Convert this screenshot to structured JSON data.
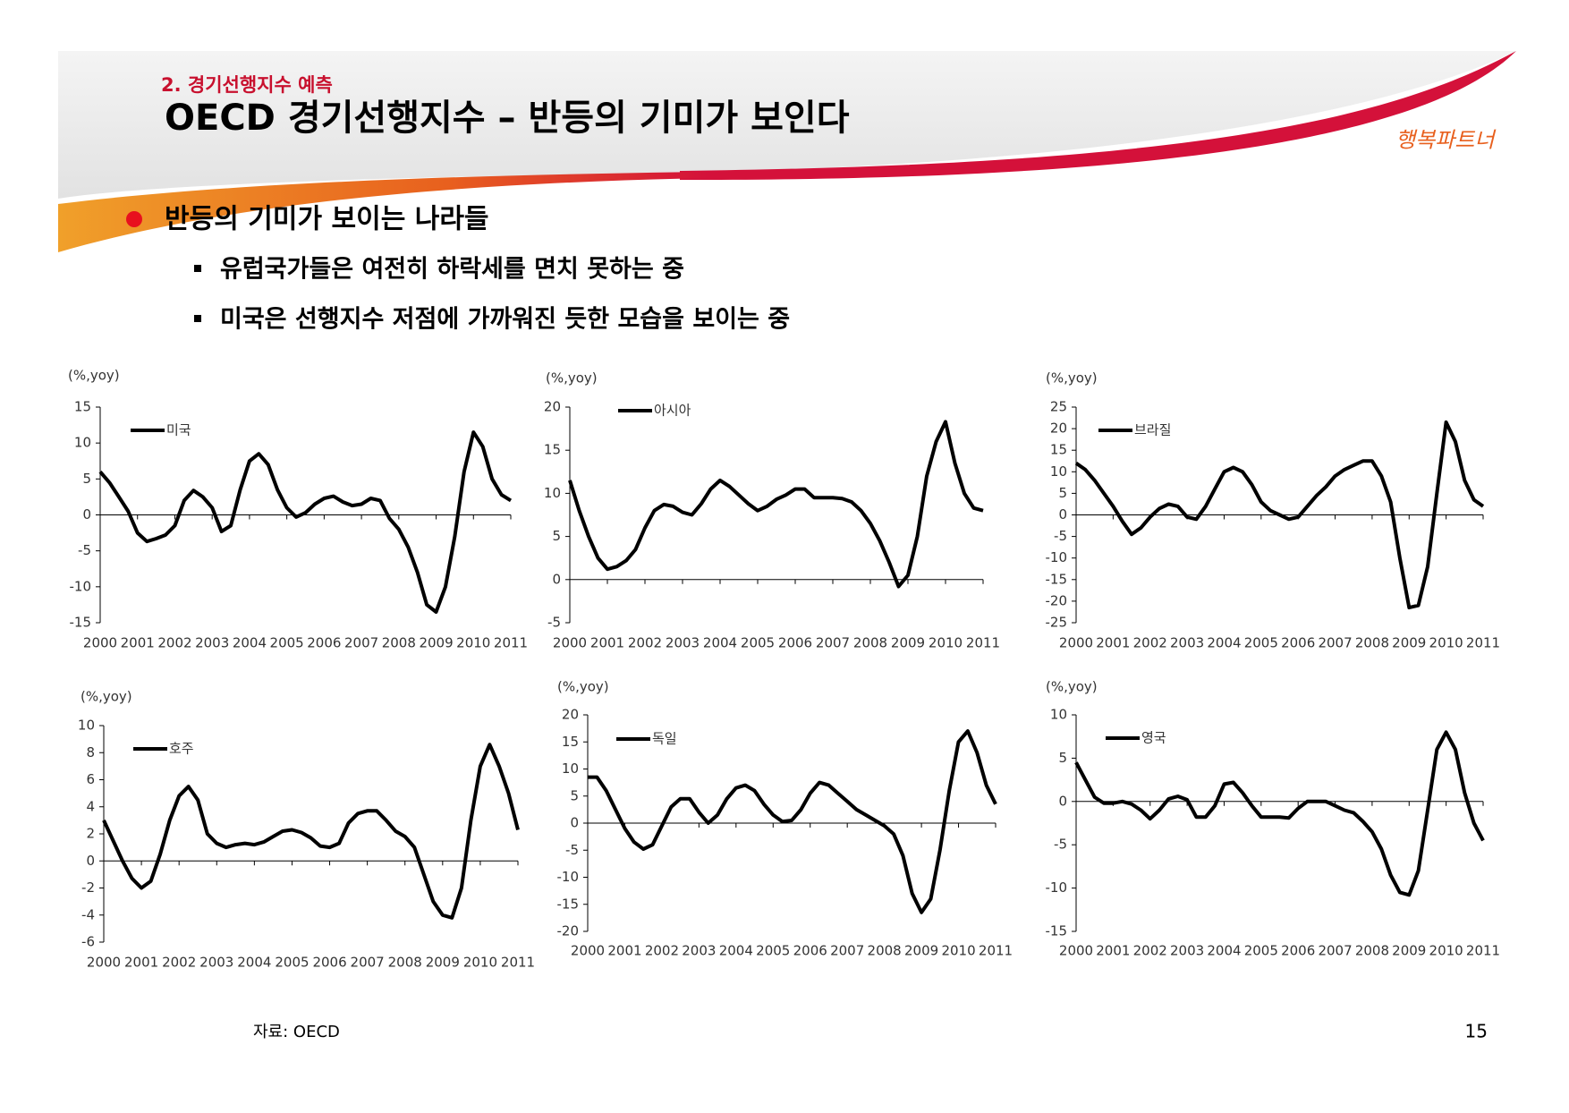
{
  "header": {
    "section": "2. 경기선행지수 예측",
    "title": "OECD 경기선행지수 – 반등의 기미가 보인다",
    "logo": "행복파트너"
  },
  "bullets": {
    "main": "반등의 기미가 보이는 나라들",
    "items": [
      "유럽국가들은 여전히 하락세를 면치 못하는 중",
      "미국은 선행지수 저점에 가까워진 듯한 모습을 보이는 중"
    ]
  },
  "chart_data": [
    {
      "type": "line",
      "y_label": "(%,yoy)",
      "xlim": [
        2000,
        2011
      ],
      "xticks": [
        2000,
        2001,
        2002,
        2003,
        2004,
        2005,
        2006,
        2007,
        2008,
        2009,
        2010,
        2011
      ],
      "ylim": [
        -15,
        15
      ],
      "yticks": [
        -15,
        -10,
        -5,
        0,
        5,
        10,
        15
      ],
      "x": [
        2000,
        2000.25,
        2000.5,
        2000.75,
        2001,
        2001.25,
        2001.5,
        2001.75,
        2002,
        2002.25,
        2002.5,
        2002.75,
        2003,
        2003.25,
        2003.5,
        2003.75,
        2004,
        2004.25,
        2004.5,
        2004.75,
        2005,
        2005.25,
        2005.5,
        2005.75,
        2006,
        2006.25,
        2006.5,
        2006.75,
        2007,
        2007.25,
        2007.5,
        2007.75,
        2008,
        2008.25,
        2008.5,
        2008.75,
        2009,
        2009.25,
        2009.5,
        2009.75,
        2010,
        2010.25,
        2010.5,
        2010.75,
        2011
      ],
      "series": [
        {
          "name": "미국",
          "color": "#000000",
          "values": [
            6,
            4.5,
            2.5,
            0.5,
            -2.5,
            -3.7,
            -3.3,
            -2.8,
            -1.5,
            2,
            3.4,
            2.5,
            1,
            -2.3,
            -1.5,
            3.5,
            7.5,
            8.5,
            7,
            3.5,
            1,
            -0.3,
            0.3,
            1.5,
            2.3,
            2.6,
            1.8,
            1.3,
            1.5,
            2.3,
            2,
            -0.5,
            -2,
            -4.5,
            -8,
            -12.5,
            -13.5,
            -10,
            -3,
            6,
            11.5,
            9.5,
            5,
            2.8,
            2
          ]
        }
      ]
    },
    {
      "type": "line",
      "y_label": "(%,yoy)",
      "xlim": [
        2000,
        2011
      ],
      "xticks": [
        2000,
        2001,
        2002,
        2003,
        2004,
        2005,
        2006,
        2007,
        2008,
        2009,
        2010,
        2011
      ],
      "ylim": [
        -5,
        20
      ],
      "yticks": [
        -5,
        0,
        5,
        10,
        15,
        20
      ],
      "x": [
        2000,
        2000.25,
        2000.5,
        2000.75,
        2001,
        2001.25,
        2001.5,
        2001.75,
        2002,
        2002.25,
        2002.5,
        2002.75,
        2003,
        2003.25,
        2003.5,
        2003.75,
        2004,
        2004.25,
        2004.5,
        2004.75,
        2005,
        2005.25,
        2005.5,
        2005.75,
        2006,
        2006.25,
        2006.5,
        2006.75,
        2007,
        2007.25,
        2007.5,
        2007.75,
        2008,
        2008.25,
        2008.5,
        2008.75,
        2009,
        2009.25,
        2009.5,
        2009.75,
        2010,
        2010.25,
        2010.5,
        2010.75,
        2011
      ],
      "series": [
        {
          "name": "아시아",
          "color": "#000000",
          "values": [
            11.5,
            8,
            5,
            2.5,
            1.2,
            1.5,
            2.2,
            3.5,
            6,
            8,
            8.7,
            8.5,
            7.8,
            7.5,
            8.8,
            10.5,
            11.5,
            10.8,
            9.8,
            8.8,
            8,
            8.5,
            9.3,
            9.8,
            10.5,
            10.5,
            9.5,
            9.5,
            9.5,
            9.4,
            9,
            8,
            6.5,
            4.5,
            2,
            -0.8,
            0.5,
            5,
            12,
            16,
            18.3,
            13.5,
            10,
            8.3,
            8
          ]
        }
      ]
    },
    {
      "type": "line",
      "y_label": "(%,yoy)",
      "xlim": [
        2000,
        2011
      ],
      "xticks": [
        2000,
        2001,
        2002,
        2003,
        2004,
        2005,
        2006,
        2007,
        2008,
        2009,
        2010,
        2011
      ],
      "ylim": [
        -25,
        25
      ],
      "yticks": [
        -25,
        -20,
        -15,
        -10,
        -5,
        0,
        5,
        10,
        15,
        20,
        25
      ],
      "x": [
        2000,
        2000.25,
        2000.5,
        2000.75,
        2001,
        2001.25,
        2001.5,
        2001.75,
        2002,
        2002.25,
        2002.5,
        2002.75,
        2003,
        2003.25,
        2003.5,
        2003.75,
        2004,
        2004.25,
        2004.5,
        2004.75,
        2005,
        2005.25,
        2005.5,
        2005.75,
        2006,
        2006.25,
        2006.5,
        2006.75,
        2007,
        2007.25,
        2007.5,
        2007.75,
        2008,
        2008.25,
        2008.5,
        2008.75,
        2009,
        2009.25,
        2009.5,
        2009.75,
        2010,
        2010.25,
        2010.5,
        2010.75,
        2011
      ],
      "series": [
        {
          "name": "브라질",
          "color": "#000000",
          "values": [
            12,
            10.5,
            8,
            5,
            2,
            -1.5,
            -4.5,
            -3,
            -0.5,
            1.5,
            2.5,
            2,
            -0.5,
            -1,
            2,
            6,
            10,
            11,
            10,
            7,
            3,
            1,
            0,
            -1,
            -0.5,
            2,
            4.5,
            6.5,
            9,
            10.5,
            11.5,
            12.5,
            12.5,
            9,
            3,
            -10,
            -21.5,
            -21,
            -12,
            5,
            21.5,
            17,
            8,
            3.5,
            2
          ]
        }
      ]
    },
    {
      "type": "line",
      "y_label": "(%,yoy)",
      "xlim": [
        2000,
        2011
      ],
      "xticks": [
        2000,
        2001,
        2002,
        2003,
        2004,
        2005,
        2006,
        2007,
        2008,
        2009,
        2010,
        2011
      ],
      "ylim": [
        -6,
        10
      ],
      "yticks": [
        -6,
        -4,
        -2,
        0,
        2,
        4,
        6,
        8,
        10
      ],
      "x": [
        2000,
        2000.25,
        2000.5,
        2000.75,
        2001,
        2001.25,
        2001.5,
        2001.75,
        2002,
        2002.25,
        2002.5,
        2002.75,
        2003,
        2003.25,
        2003.5,
        2003.75,
        2004,
        2004.25,
        2004.5,
        2004.75,
        2005,
        2005.25,
        2005.5,
        2005.75,
        2006,
        2006.25,
        2006.5,
        2006.75,
        2007,
        2007.25,
        2007.5,
        2007.75,
        2008,
        2008.25,
        2008.5,
        2008.75,
        2009,
        2009.25,
        2009.5,
        2009.75,
        2010,
        2010.25,
        2010.5,
        2010.75,
        2011
      ],
      "series": [
        {
          "name": "호주",
          "color": "#000000",
          "values": [
            3,
            1.5,
            0,
            -1.3,
            -2,
            -1.5,
            0.5,
            3,
            4.8,
            5.5,
            4.5,
            2,
            1.3,
            1,
            1.2,
            1.3,
            1.2,
            1.4,
            1.8,
            2.2,
            2.3,
            2.1,
            1.7,
            1.1,
            1,
            1.3,
            2.8,
            3.5,
            3.7,
            3.7,
            3,
            2.2,
            1.8,
            1,
            -1,
            -3,
            -4,
            -4.2,
            -2,
            3,
            7,
            8.6,
            7,
            5,
            2.3
          ]
        }
      ]
    },
    {
      "type": "line",
      "y_label": "(%,yoy)",
      "xlim": [
        2000,
        2011
      ],
      "xticks": [
        2000,
        2001,
        2002,
        2003,
        2004,
        2005,
        2006,
        2007,
        2008,
        2009,
        2010,
        2011
      ],
      "ylim": [
        -20,
        20
      ],
      "yticks": [
        -20,
        -15,
        -10,
        -5,
        0,
        5,
        10,
        15,
        20
      ],
      "x": [
        2000,
        2000.25,
        2000.5,
        2000.75,
        2001,
        2001.25,
        2001.5,
        2001.75,
        2002,
        2002.25,
        2002.5,
        2002.75,
        2003,
        2003.25,
        2003.5,
        2003.75,
        2004,
        2004.25,
        2004.5,
        2004.75,
        2005,
        2005.25,
        2005.5,
        2005.75,
        2006,
        2006.25,
        2006.5,
        2006.75,
        2007,
        2007.25,
        2007.5,
        2007.75,
        2008,
        2008.25,
        2008.5,
        2008.75,
        2009,
        2009.25,
        2009.5,
        2009.75,
        2010,
        2010.25,
        2010.5,
        2010.75,
        2011
      ],
      "series": [
        {
          "name": "독일",
          "color": "#000000",
          "values": [
            8.5,
            8.5,
            6,
            2.5,
            -1,
            -3.5,
            -4.8,
            -4,
            -0.5,
            3,
            4.5,
            4.5,
            2,
            0,
            1.5,
            4.5,
            6.5,
            7,
            6,
            3.5,
            1.5,
            0.3,
            0.5,
            2.5,
            5.5,
            7.5,
            7,
            5.5,
            4,
            2.5,
            1.5,
            0.5,
            -0.5,
            -2,
            -6,
            -13,
            -16.5,
            -14,
            -5,
            6,
            15,
            17,
            13,
            7,
            3.5
          ]
        }
      ]
    },
    {
      "type": "line",
      "y_label": "(%,yoy)",
      "xlim": [
        2000,
        2011
      ],
      "xticks": [
        2000,
        2001,
        2002,
        2003,
        2004,
        2005,
        2006,
        2007,
        2008,
        2009,
        2010,
        2011
      ],
      "ylim": [
        -15,
        10
      ],
      "yticks": [
        -15,
        -10,
        -5,
        0,
        5,
        10
      ],
      "x": [
        2000,
        2000.25,
        2000.5,
        2000.75,
        2001,
        2001.25,
        2001.5,
        2001.75,
        2002,
        2002.25,
        2002.5,
        2002.75,
        2003,
        2003.25,
        2003.5,
        2003.75,
        2004,
        2004.25,
        2004.5,
        2004.75,
        2005,
        2005.25,
        2005.5,
        2005.75,
        2006,
        2006.25,
        2006.5,
        2006.75,
        2007,
        2007.25,
        2007.5,
        2007.75,
        2008,
        2008.25,
        2008.5,
        2008.75,
        2009,
        2009.25,
        2009.5,
        2009.75,
        2010,
        2010.25,
        2010.5,
        2010.75,
        2011
      ],
      "series": [
        {
          "name": "영국",
          "color": "#000000",
          "values": [
            4.5,
            2.5,
            0.5,
            -0.2,
            -0.2,
            0,
            -0.3,
            -1,
            -2,
            -1,
            0.3,
            0.6,
            0.2,
            -1.8,
            -1.8,
            -0.5,
            2,
            2.2,
            1,
            -0.5,
            -1.8,
            -1.8,
            -1.8,
            -1.9,
            -0.8,
            0,
            0,
            0,
            -0.5,
            -1,
            -1.3,
            -2.3,
            -3.5,
            -5.5,
            -8.5,
            -10.5,
            -10.8,
            -8,
            -1,
            6,
            8,
            6,
            1,
            -2.5,
            -4.5
          ]
        }
      ]
    }
  ],
  "footer": {
    "source": "자료: OECD",
    "page": "15"
  }
}
